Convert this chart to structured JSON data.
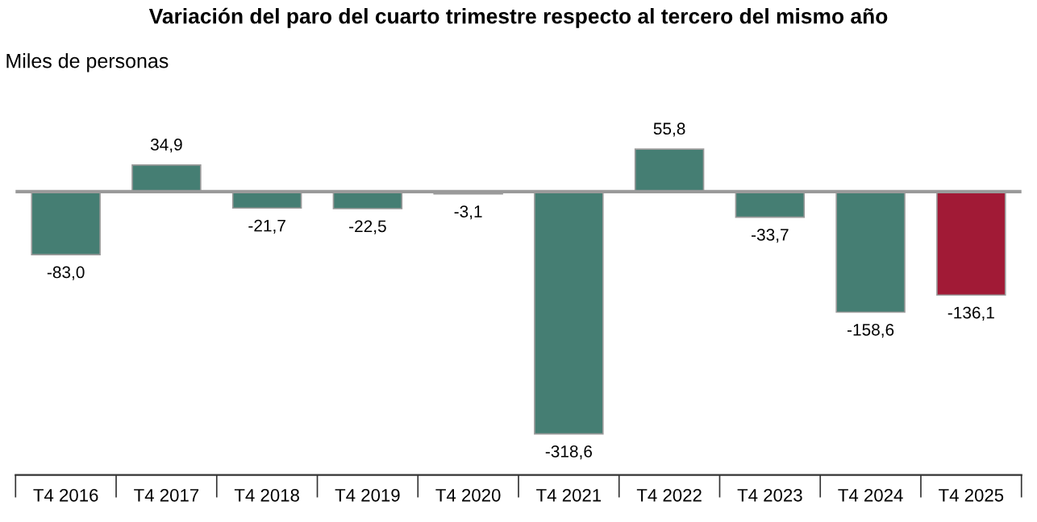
{
  "chart_data": {
    "type": "bar",
    "title": "Variación del paro del cuarto trimestre respecto al tercero del mismo año",
    "ylabel": "Miles de personas",
    "categories": [
      "T4 2016",
      "T4 2017",
      "T4 2018",
      "T4 2019",
      "T4 2020",
      "T4 2021",
      "T4 2022",
      "T4 2023",
      "T4 2024",
      "T4 2025"
    ],
    "values": [
      -83.0,
      34.9,
      -21.7,
      -22.5,
      -3.1,
      -318.6,
      55.8,
      -33.7,
      -158.6,
      -136.1
    ],
    "value_labels": [
      "-83,0",
      "34,9",
      "-21,7",
      "-22,5",
      "-3,1",
      "-318,6",
      "55,8",
      "-33,7",
      "-158,6",
      "-136,1"
    ],
    "colors": [
      "#457e73",
      "#457e73",
      "#457e73",
      "#457e73",
      "#457e73",
      "#457e73",
      "#457e73",
      "#457e73",
      "#457e73",
      "#a11a36"
    ],
    "grid": false,
    "legend": false
  }
}
